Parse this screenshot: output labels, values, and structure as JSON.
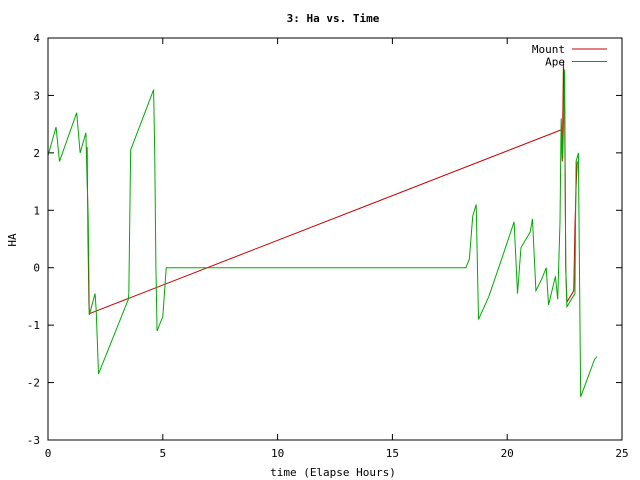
{
  "chart_data": {
    "type": "line",
    "title": "3: Ha vs. Time",
    "xlabel": "time (Elapse Hours)",
    "ylabel": "HA",
    "xlim": [
      0,
      25
    ],
    "ylim": [
      -3,
      4
    ],
    "x_ticks": [
      0,
      5,
      10,
      15,
      20,
      25
    ],
    "y_ticks": [
      -3,
      -2,
      -1,
      0,
      1,
      2,
      3,
      4
    ],
    "grid": false,
    "legend_position": "top-right",
    "series": [
      {
        "name": "Mount",
        "color": "#cc0000",
        "points": [
          [
            1.7,
            2.1
          ],
          [
            1.72,
            1.4
          ],
          [
            1.74,
            0.6
          ],
          [
            1.76,
            0.0
          ],
          [
            1.78,
            -0.6
          ],
          [
            1.8,
            -0.8
          ],
          [
            22.35,
            2.4
          ],
          [
            22.4,
            1.85
          ],
          [
            22.45,
            3.6
          ],
          [
            22.5,
            2.8
          ],
          [
            22.55,
            0.0
          ],
          [
            22.6,
            -0.6
          ],
          [
            22.9,
            -0.4
          ],
          [
            22.95,
            0.7
          ],
          [
            23.0,
            1.4
          ],
          [
            23.05,
            1.85
          ]
        ]
      },
      {
        "name": "Ape",
        "color": "#00aa00",
        "points": [
          [
            0.0,
            1.95
          ],
          [
            0.35,
            2.45
          ],
          [
            0.5,
            1.85
          ],
          [
            1.25,
            2.7
          ],
          [
            1.4,
            2.0
          ],
          [
            1.65,
            2.35
          ],
          [
            1.7,
            1.55
          ],
          [
            1.75,
            0.9
          ],
          [
            1.8,
            -0.82
          ],
          [
            2.05,
            -0.45
          ],
          [
            2.1,
            -0.75
          ],
          [
            2.2,
            -1.85
          ],
          [
            3.5,
            -0.55
          ],
          [
            3.52,
            -0.45
          ],
          [
            3.6,
            2.05
          ],
          [
            4.6,
            3.1
          ],
          [
            4.65,
            1.95
          ],
          [
            4.7,
            0.0
          ],
          [
            4.75,
            -1.1
          ],
          [
            5.0,
            -0.85
          ],
          [
            5.15,
            0.0
          ],
          [
            6.0,
            0.0
          ],
          [
            10.0,
            0.0
          ],
          [
            15.0,
            0.0
          ],
          [
            18.2,
            0.0
          ],
          [
            18.35,
            0.15
          ],
          [
            18.5,
            0.9
          ],
          [
            18.65,
            1.1
          ],
          [
            18.75,
            -0.9
          ],
          [
            19.2,
            -0.5
          ],
          [
            19.8,
            0.2
          ],
          [
            20.3,
            0.8
          ],
          [
            20.45,
            -0.45
          ],
          [
            20.6,
            0.35
          ],
          [
            21.0,
            0.62
          ],
          [
            21.1,
            0.85
          ],
          [
            21.25,
            -0.4
          ],
          [
            21.5,
            -0.2
          ],
          [
            21.7,
            0.0
          ],
          [
            21.8,
            -0.65
          ],
          [
            22.1,
            -0.15
          ],
          [
            22.2,
            -0.55
          ],
          [
            22.3,
            0.8
          ],
          [
            22.35,
            2.6
          ],
          [
            22.42,
            1.9
          ],
          [
            22.5,
            3.45
          ],
          [
            22.55,
            0.0
          ],
          [
            22.6,
            -0.68
          ],
          [
            22.95,
            -0.45
          ],
          [
            23.0,
            1.85
          ],
          [
            23.1,
            2.0
          ],
          [
            23.2,
            -2.25
          ],
          [
            23.8,
            -1.6
          ],
          [
            23.9,
            -1.55
          ]
        ]
      }
    ]
  }
}
